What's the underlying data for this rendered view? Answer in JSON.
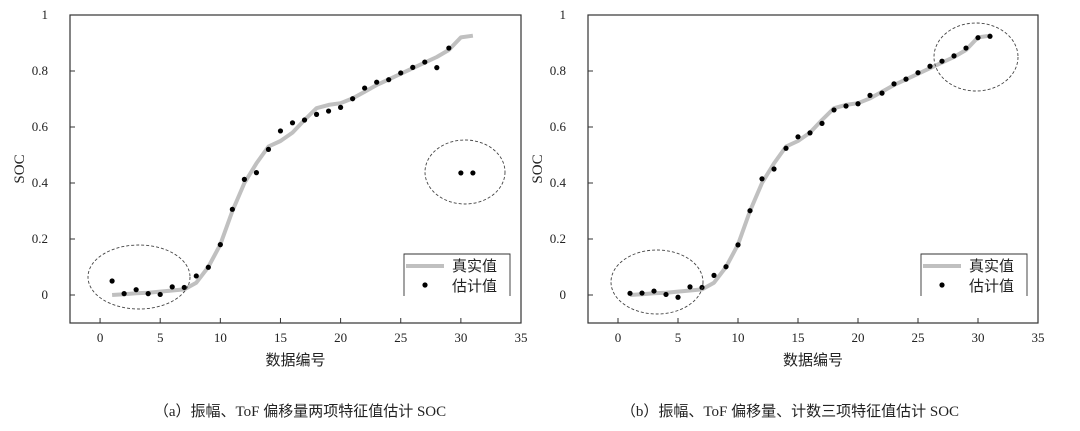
{
  "chart_data": [
    {
      "type": "line",
      "caption": "（a）振幅、ToF 偏移量两项特征值估计 SOC",
      "xlabel": "数据编号",
      "ylabel": "SOC",
      "xlim": [
        -2.5,
        35
      ],
      "ylim": [
        -0.1,
        1
      ],
      "xticks": [
        0,
        5,
        10,
        15,
        20,
        25,
        30,
        35
      ],
      "yticks": [
        0,
        0.2,
        0.4,
        0.6,
        0.8,
        1
      ],
      "ytick_labels": [
        "0",
        "0.2",
        "0.4",
        "0.6",
        "0.8",
        "1"
      ],
      "grid": false,
      "legend_position": "bottom-right",
      "x": [
        1,
        2,
        3,
        4,
        5,
        6,
        7,
        8,
        9,
        10,
        11,
        12,
        13,
        14,
        15,
        16,
        17,
        18,
        19,
        20,
        21,
        22,
        23,
        24,
        25,
        26,
        27,
        28,
        29,
        30,
        31
      ],
      "series": [
        {
          "name": "真实值",
          "style": "line",
          "color": "#c0c0c0",
          "values": [
            0,
            0.003,
            0.006,
            0.008,
            0.012,
            0.016,
            0.02,
            0.044,
            0.1,
            0.18,
            0.3,
            0.4,
            0.47,
            0.53,
            0.55,
            0.58,
            0.625,
            0.667,
            0.679,
            0.685,
            0.702,
            0.726,
            0.75,
            0.77,
            0.79,
            0.81,
            0.83,
            0.85,
            0.875,
            0.92,
            0.926
          ]
        },
        {
          "name": "估计值",
          "style": "marker",
          "color": "#000000",
          "values": [
            0.05,
            0.005,
            0.019,
            0.005,
            0.002,
            0.029,
            0.027,
            0.068,
            0.099,
            0.18,
            0.306,
            0.413,
            0.437,
            0.52,
            0.586,
            0.615,
            0.625,
            0.645,
            0.657,
            0.67,
            0.701,
            0.739,
            0.76,
            0.769,
            0.793,
            0.813,
            0.832,
            0.812,
            0.882,
            0.436,
            0.436
          ]
        }
      ]
    },
    {
      "type": "line",
      "caption": "（b）振幅、ToF 偏移量、计数三项特征值估计 SOC",
      "xlabel": "数据编号",
      "ylabel": "SOC",
      "xlim": [
        -2.5,
        35
      ],
      "ylim": [
        -0.1,
        1
      ],
      "xticks": [
        0,
        5,
        10,
        15,
        20,
        25,
        30,
        35
      ],
      "yticks": [
        0,
        0.2,
        0.4,
        0.6,
        0.8,
        1
      ],
      "ytick_labels": [
        "0",
        "0.2",
        "0.4",
        "0.6",
        "0.8",
        "1"
      ],
      "grid": false,
      "legend_position": "bottom-right",
      "x": [
        1,
        2,
        3,
        4,
        5,
        6,
        7,
        8,
        9,
        10,
        11,
        12,
        13,
        14,
        15,
        16,
        17,
        18,
        19,
        20,
        21,
        22,
        23,
        24,
        25,
        26,
        27,
        28,
        29,
        30,
        31
      ],
      "series": [
        {
          "name": "真实值",
          "style": "line",
          "color": "#c0c0c0",
          "values": [
            0,
            0.003,
            0.006,
            0.008,
            0.012,
            0.016,
            0.02,
            0.044,
            0.1,
            0.18,
            0.3,
            0.4,
            0.47,
            0.53,
            0.55,
            0.58,
            0.625,
            0.667,
            0.679,
            0.685,
            0.702,
            0.726,
            0.75,
            0.77,
            0.79,
            0.81,
            0.83,
            0.85,
            0.875,
            0.92,
            0.926
          ]
        },
        {
          "name": "估计值",
          "style": "marker",
          "color": "#000000",
          "values": [
            0.006,
            0.007,
            0.014,
            0.002,
            -0.008,
            0.029,
            0.027,
            0.07,
            0.101,
            0.179,
            0.301,
            0.415,
            0.45,
            0.524,
            0.565,
            0.579,
            0.613,
            0.661,
            0.675,
            0.683,
            0.713,
            0.721,
            0.754,
            0.771,
            0.794,
            0.817,
            0.835,
            0.854,
            0.882,
            0.919,
            0.924
          ]
        }
      ]
    }
  ]
}
